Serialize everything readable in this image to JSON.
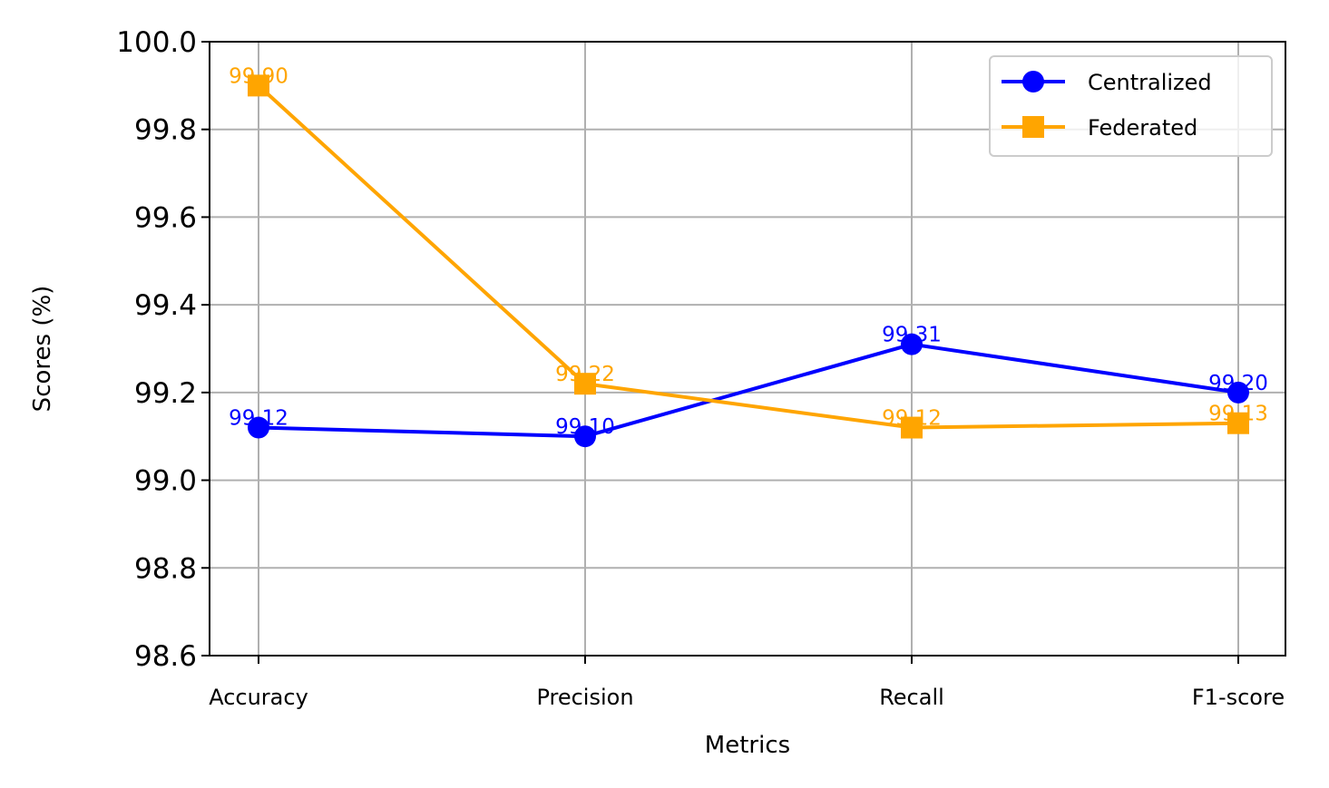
{
  "chart_data": {
    "type": "line",
    "categories": [
      "Accuracy",
      "Precision",
      "Recall",
      "F1-score"
    ],
    "series": [
      {
        "name": "Centralized",
        "values": [
          99.12,
          99.1,
          99.31,
          99.2
        ],
        "labels": [
          "99.12",
          "99.10",
          "99.31",
          "99.20"
        ],
        "color": "#0000ff",
        "marker": "circle"
      },
      {
        "name": "Federated",
        "values": [
          99.9,
          99.22,
          99.12,
          99.13
        ],
        "labels": [
          "99.90",
          "99.22",
          "99.12",
          "99.13"
        ],
        "color": "#ffa500",
        "marker": "square"
      }
    ],
    "xlabel": "Metrics",
    "ylabel": "Scores (%)",
    "ylim": [
      98.6,
      100.0
    ],
    "yticks": [
      98.6,
      98.8,
      99.0,
      99.2,
      99.4,
      99.6,
      99.8,
      100.0
    ],
    "ytick_labels": [
      "98.6",
      "98.8",
      "99.0",
      "99.2",
      "99.4",
      "99.6",
      "99.8",
      "100.0"
    ],
    "grid": true,
    "legend_position": "top-right"
  }
}
